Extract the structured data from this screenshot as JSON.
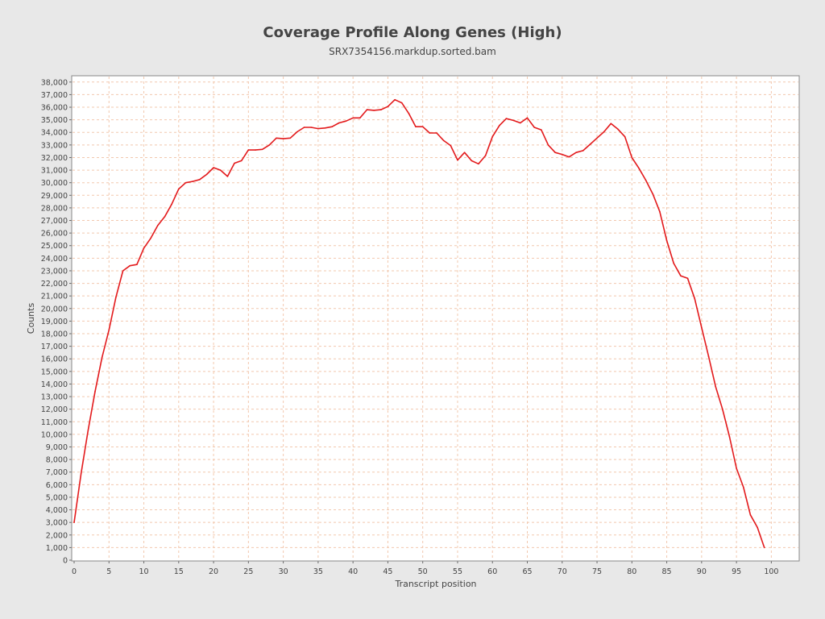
{
  "chart_data": {
    "type": "line",
    "title": "Coverage Profile Along Genes (High)",
    "subtitle": "SRX7354156.markdup.sorted.bam",
    "xlabel": "Transcript position",
    "ylabel": "Counts",
    "xlim": [
      0,
      104
    ],
    "ylim": [
      0,
      38500
    ],
    "xticks": [
      0,
      5,
      10,
      15,
      20,
      25,
      30,
      35,
      40,
      45,
      50,
      55,
      60,
      65,
      70,
      75,
      80,
      85,
      90,
      95,
      100
    ],
    "yticks": [
      0,
      1000,
      2000,
      3000,
      4000,
      5000,
      6000,
      7000,
      8000,
      9000,
      10000,
      11000,
      12000,
      13000,
      14000,
      15000,
      16000,
      17000,
      18000,
      19000,
      20000,
      21000,
      22000,
      23000,
      24000,
      25000,
      26000,
      27000,
      28000,
      29000,
      30000,
      31000,
      32000,
      33000,
      34000,
      35000,
      36000,
      37000,
      38000
    ],
    "ytick_labels": [
      "0",
      "1,000",
      "2,000",
      "3,000",
      "4,000",
      "5,000",
      "6,000",
      "7,000",
      "8,000",
      "9,000",
      "10,000",
      "11,000",
      "12,000",
      "13,000",
      "14,000",
      "15,000",
      "16,000",
      "17,000",
      "18,000",
      "19,000",
      "20,000",
      "21,000",
      "22,000",
      "23,000",
      "24,000",
      "25,000",
      "26,000",
      "27,000",
      "28,000",
      "29,000",
      "30,000",
      "31,000",
      "32,000",
      "33,000",
      "34,000",
      "35,000",
      "36,000",
      "37,000",
      "38,000"
    ],
    "grid": true,
    "legend": "none",
    "series": [
      {
        "color": "#e31a1c",
        "x": [
          0,
          1,
          2,
          3,
          4,
          5,
          6,
          7,
          8,
          9,
          10,
          11,
          12,
          13,
          14,
          15,
          16,
          17,
          18,
          19,
          20,
          21,
          22,
          23,
          24,
          25,
          26,
          27,
          28,
          29,
          30,
          31,
          32,
          33,
          34,
          35,
          36,
          37,
          38,
          39,
          40,
          41,
          42,
          43,
          44,
          45,
          46,
          47,
          48,
          49,
          50,
          51,
          52,
          53,
          54,
          55,
          56,
          57,
          58,
          59,
          60,
          61,
          62,
          63,
          64,
          65,
          66,
          67,
          68,
          69,
          70,
          71,
          72,
          73,
          74,
          75,
          76,
          77,
          78,
          79,
          80,
          81,
          82,
          83,
          84,
          85,
          86,
          87,
          88,
          89,
          90,
          91,
          92,
          93,
          94,
          95,
          96,
          97,
          98,
          99
        ],
        "y": [
          3000,
          6900,
          10300,
          13400,
          16100,
          18300,
          20900,
          23000,
          23400,
          23500,
          24800,
          25600,
          26600,
          27300,
          28300,
          29500,
          30000,
          30100,
          30250,
          30650,
          31200,
          31000,
          30500,
          31550,
          31750,
          32600,
          32600,
          32650,
          33000,
          33550,
          33500,
          33550,
          34050,
          34400,
          34400,
          34300,
          34350,
          34450,
          34750,
          34900,
          35150,
          35150,
          35800,
          35750,
          35800,
          36050,
          36600,
          36350,
          35500,
          34450,
          34450,
          33950,
          33950,
          33350,
          32950,
          31800,
          32400,
          31750,
          31500,
          32150,
          33650,
          34550,
          35100,
          34950,
          34750,
          35150,
          34400,
          34200,
          33000,
          32400,
          32250,
          32050,
          32400,
          32550,
          33050,
          33550,
          34050,
          34700,
          34250,
          33650,
          32000,
          31150,
          30200,
          29100,
          27700,
          25400,
          23600,
          22600,
          22400,
          20800,
          18500,
          16200,
          13800,
          12000,
          9800,
          7300,
          5800,
          3600,
          2600,
          1000
        ]
      }
    ]
  }
}
